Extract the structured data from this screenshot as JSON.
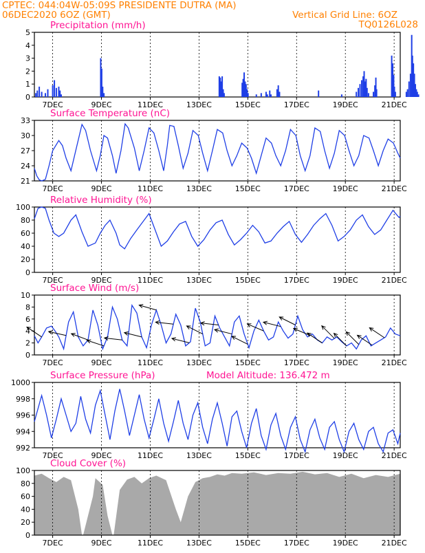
{
  "header": {
    "line1": "CPTEC:   044:04W-05:09S   PRESIDENTE DUTRA (MA)",
    "line2": "06DEC2020 6OZ (GMT)",
    "right1": "Vertical Grid Line: 6OZ",
    "right2": "TQ0126L028"
  },
  "colors": {
    "line": "#1f3fe6",
    "header": "#ff8000",
    "title": "#ff1493",
    "cloud": "#a9a9a9",
    "arrow": "#000000"
  },
  "chart_data": [
    {
      "type": "bar",
      "title": "Precipitation (mm/h)",
      "x_labels": [
        "7DEC",
        "9DEC",
        "11DEC",
        "13DEC",
        "15DEC",
        "17DEC",
        "19DEC",
        "21DEC"
      ],
      "ylim": [
        0,
        5
      ],
      "yticks": [
        0,
        1,
        2,
        3,
        4,
        5
      ],
      "x_unit": "day offset from 06DEC2020 06Z (hourly bars)",
      "bars": [
        [
          0.06,
          0.3
        ],
        [
          0.12,
          0.5
        ],
        [
          0.2,
          0.8
        ],
        [
          0.3,
          0.4
        ],
        [
          0.45,
          0.3
        ],
        [
          0.55,
          0.6
        ],
        [
          0.75,
          0.9
        ],
        [
          0.82,
          1.3
        ],
        [
          0.9,
          0.7
        ],
        [
          1.0,
          0.8
        ],
        [
          1.05,
          0.5
        ],
        [
          1.1,
          0.2
        ],
        [
          2.72,
          3.0
        ],
        [
          2.76,
          2.2
        ],
        [
          2.8,
          0.8
        ],
        [
          2.85,
          0.3
        ],
        [
          7.58,
          1.6
        ],
        [
          7.62,
          1.5
        ],
        [
          7.66,
          1.2
        ],
        [
          7.7,
          1.6
        ],
        [
          7.74,
          0.6
        ],
        [
          7.78,
          0.3
        ],
        [
          8.52,
          1.1
        ],
        [
          8.56,
          1.4
        ],
        [
          8.6,
          1.9
        ],
        [
          8.64,
          1.2
        ],
        [
          8.68,
          1.0
        ],
        [
          8.72,
          0.6
        ],
        [
          8.76,
          0.3
        ],
        [
          9.1,
          0.2
        ],
        [
          9.3,
          0.3
        ],
        [
          9.5,
          0.4
        ],
        [
          9.55,
          0.2
        ],
        [
          9.65,
          0.5
        ],
        [
          9.7,
          0.2
        ],
        [
          9.95,
          0.6
        ],
        [
          10.0,
          0.9
        ],
        [
          10.05,
          0.4
        ],
        [
          11.65,
          0.5
        ],
        [
          12.6,
          0.2
        ],
        [
          13.2,
          0.4
        ],
        [
          13.28,
          0.7
        ],
        [
          13.35,
          1.0
        ],
        [
          13.42,
          1.3
        ],
        [
          13.48,
          1.6
        ],
        [
          13.52,
          2.0
        ],
        [
          13.56,
          1.2
        ],
        [
          13.6,
          1.4
        ],
        [
          13.64,
          0.7
        ],
        [
          13.7,
          0.3
        ],
        [
          13.9,
          0.4
        ],
        [
          13.96,
          0.9
        ],
        [
          14.0,
          1.5
        ],
        [
          14.03,
          0.6
        ],
        [
          14.65,
          3.2
        ],
        [
          14.69,
          2.6
        ],
        [
          14.73,
          1.7
        ],
        [
          14.76,
          0.8
        ],
        [
          14.8,
          0.4
        ],
        [
          15.25,
          0.4
        ],
        [
          15.3,
          0.6
        ],
        [
          15.36,
          1.2
        ],
        [
          15.42,
          1.8
        ],
        [
          15.47,
          4.8
        ],
        [
          15.5,
          3.2
        ],
        [
          15.54,
          2.6
        ],
        [
          15.58,
          1.8
        ],
        [
          15.62,
          1.0
        ],
        [
          15.66,
          0.6
        ],
        [
          15.7,
          0.4
        ],
        [
          15.75,
          0.2
        ]
      ]
    },
    {
      "type": "line",
      "title": "Surface Temperature (nC)",
      "x_labels": [
        "7DEC",
        "9DEC",
        "11DEC",
        "13DEC",
        "15DEC",
        "17DEC",
        "19DEC",
        "21DEC"
      ],
      "ylim": [
        21,
        33
      ],
      "yticks": [
        21,
        24,
        27,
        30,
        33
      ],
      "x": [
        0,
        0.1,
        0.2,
        0.3,
        0.45,
        0.6,
        0.75,
        1.0,
        1.15,
        1.3,
        1.5,
        1.72,
        1.95,
        2.1,
        2.3,
        2.55,
        2.7,
        2.85,
        3.0,
        3.2,
        3.35,
        3.55,
        3.72,
        3.85,
        4.1,
        4.3,
        4.5,
        4.7,
        4.9,
        5.1,
        5.3,
        5.45,
        5.55,
        5.72,
        5.9,
        6.1,
        6.3,
        6.5,
        6.72,
        6.9,
        7.1,
        7.3,
        7.5,
        7.72,
        7.9,
        8.1,
        8.3,
        8.5,
        8.72,
        8.9,
        9.1,
        9.3,
        9.5,
        9.72,
        9.9,
        10.1,
        10.3,
        10.5,
        10.72,
        10.9,
        11.1,
        11.3,
        11.5,
        11.72,
        11.9,
        12.1,
        12.3,
        12.5,
        12.72,
        12.9,
        13.1,
        13.3,
        13.5,
        13.72,
        13.9,
        14.1,
        14.3,
        14.5,
        14.72,
        14.9,
        15.0
      ],
      "y": [
        23.5,
        22.0,
        21.2,
        21.0,
        21.3,
        24.0,
        27.0,
        29.0,
        28.0,
        25.5,
        23.0,
        27.5,
        32.2,
        31.0,
        27.0,
        23.0,
        26.0,
        30.0,
        29.5,
        26.0,
        22.5,
        27.0,
        32.3,
        31.5,
        27.5,
        23.0,
        27.0,
        31.5,
        30.5,
        27.0,
        23.0,
        28.0,
        32.0,
        31.8,
        28.0,
        23.5,
        26.5,
        31.0,
        30.0,
        26.5,
        23.0,
        27.0,
        31.2,
        30.5,
        27.0,
        24.0,
        26.0,
        28.5,
        27.5,
        25.5,
        22.5,
        26.0,
        29.5,
        28.5,
        26.0,
        24.0,
        27.0,
        31.2,
        30.0,
        26.0,
        23.0,
        26.0,
        31.5,
        30.8,
        27.0,
        23.5,
        26.5,
        31.0,
        30.0,
        27.0,
        24.0,
        26.0,
        30.0,
        29.5,
        27.0,
        24.0,
        27.0,
        29.3,
        28.5,
        26.5,
        25.5
      ]
    },
    {
      "type": "line",
      "title": "Relative Humidity (%)",
      "x_labels": [
        "7DEC",
        "9DEC",
        "11DEC",
        "13DEC",
        "15DEC",
        "17DEC",
        "19DEC",
        "21DEC"
      ],
      "ylim": [
        0,
        100
      ],
      "yticks": [
        0,
        20,
        40,
        60,
        80,
        100
      ],
      "x": [
        0,
        0.15,
        0.3,
        0.45,
        0.6,
        0.8,
        1.0,
        1.2,
        1.5,
        1.7,
        1.95,
        2.2,
        2.5,
        2.7,
        2.9,
        3.1,
        3.35,
        3.5,
        3.7,
        3.95,
        4.2,
        4.5,
        4.7,
        4.9,
        5.2,
        5.45,
        5.7,
        5.95,
        6.2,
        6.45,
        6.7,
        6.95,
        7.2,
        7.45,
        7.7,
        7.95,
        8.2,
        8.45,
        8.7,
        8.95,
        9.2,
        9.45,
        9.7,
        9.95,
        10.2,
        10.45,
        10.7,
        10.95,
        11.2,
        11.45,
        11.7,
        11.95,
        12.2,
        12.45,
        12.7,
        12.95,
        13.2,
        13.45,
        13.7,
        13.95,
        14.2,
        14.45,
        14.7,
        14.95,
        15.0
      ],
      "y": [
        82,
        98,
        100,
        98,
        80,
        60,
        55,
        60,
        80,
        88,
        62,
        40,
        45,
        60,
        72,
        80,
        60,
        42,
        36,
        52,
        65,
        80,
        90,
        70,
        40,
        48,
        62,
        74,
        78,
        55,
        40,
        50,
        65,
        76,
        80,
        58,
        42,
        50,
        60,
        72,
        62,
        45,
        48,
        60,
        70,
        78,
        58,
        46,
        58,
        72,
        82,
        90,
        72,
        48,
        55,
        65,
        80,
        88,
        70,
        58,
        65,
        80,
        95,
        84,
        86
      ]
    },
    {
      "type": "line",
      "title": "Surface Wind (m/s)",
      "x_labels": [
        "7DEC",
        "9DEC",
        "11DEC",
        "13DEC",
        "15DEC",
        "17DEC",
        "19DEC",
        "21DEC"
      ],
      "ylim": [
        0,
        10
      ],
      "yticks": [
        0,
        2,
        4,
        6,
        8,
        10
      ],
      "x": [
        0,
        0.15,
        0.3,
        0.5,
        0.7,
        0.85,
        1.0,
        1.2,
        1.4,
        1.6,
        1.8,
        2.0,
        2.2,
        2.4,
        2.6,
        2.8,
        3.0,
        3.2,
        3.4,
        3.6,
        3.8,
        4.0,
        4.2,
        4.4,
        4.6,
        4.8,
        5.0,
        5.2,
        5.4,
        5.6,
        5.8,
        6.0,
        6.2,
        6.4,
        6.6,
        6.8,
        7.0,
        7.2,
        7.4,
        7.6,
        7.8,
        8.0,
        8.2,
        8.4,
        8.6,
        8.8,
        9.0,
        9.2,
        9.4,
        9.6,
        9.8,
        10.0,
        10.2,
        10.4,
        10.6,
        10.8,
        11.0,
        11.2,
        11.4,
        11.6,
        11.8,
        12.0,
        12.2,
        12.4,
        12.6,
        12.8,
        13.0,
        13.2,
        13.4,
        13.6,
        13.8,
        14.0,
        14.2,
        14.4,
        14.6,
        14.8,
        15.0
      ],
      "y": [
        3.2,
        2.0,
        3.0,
        4.5,
        4.8,
        4.0,
        3.0,
        1.0,
        5.5,
        7.2,
        3.0,
        1.5,
        2.5,
        7.5,
        5.0,
        1.0,
        3.0,
        8.0,
        6.0,
        2.5,
        1.5,
        8.3,
        7.0,
        3.0,
        1.2,
        5.0,
        7.5,
        5.0,
        2.0,
        3.5,
        6.8,
        5.0,
        1.5,
        2.2,
        7.8,
        5.5,
        1.5,
        2.0,
        6.5,
        4.5,
        3.0,
        1.5,
        5.5,
        6.5,
        3.5,
        1.2,
        4.0,
        5.8,
        4.0,
        2.5,
        3.0,
        5.5,
        4.0,
        2.8,
        3.5,
        6.5,
        4.2,
        3.0,
        3.5,
        2.5,
        2.0,
        3.0,
        2.5,
        3.0,
        2.2,
        1.5,
        2.0,
        1.0,
        2.5,
        3.2,
        1.5,
        2.0,
        2.5,
        3.0,
        4.5,
        3.5,
        3.2
      ],
      "arrows_x": [
        0.3,
        1.3,
        2.2,
        2.85,
        3.6,
        4.4,
        5.0,
        5.7,
        6.35,
        6.9,
        7.55,
        8.1,
        8.75,
        9.4,
        10.1,
        10.7,
        11.3,
        11.8,
        12.3,
        12.8,
        13.3,
        13.85,
        14.35
      ],
      "arrows_u": [
        -0.6,
        -0.9,
        -0.8,
        -0.6,
        -0.9,
        -0.8,
        -0.7,
        -0.9,
        -0.8,
        -0.6,
        -0.9,
        -0.8,
        -0.6,
        -0.7,
        -0.8,
        -0.6,
        -0.7,
        -0.6,
        -0.5,
        -0.5,
        -0.5,
        -0.6,
        -0.6
      ],
      "arrows_v": [
        0.4,
        0.2,
        0.3,
        0.2,
        0.1,
        0.2,
        0.2,
        0.1,
        0.2,
        0.3,
        0.1,
        0.2,
        0.3,
        0.3,
        0.2,
        0.3,
        0.3,
        0.4,
        0.5,
        0.5,
        0.5,
        0.4,
        0.4
      ]
    },
    {
      "type": "line",
      "title": "Surface Pressure (hPa)",
      "annotation": "Model Altitude: 136.472  m",
      "x_labels": [
        "7DEC",
        "9DEC",
        "11DEC",
        "13DEC",
        "15DEC",
        "17DEC",
        "19DEC",
        "21DEC"
      ],
      "ylim": [
        992,
        1000
      ],
      "yticks": [
        992,
        994,
        996,
        998,
        1000
      ],
      "x": [
        0,
        0.12,
        0.3,
        0.5,
        0.7,
        0.9,
        1.1,
        1.3,
        1.5,
        1.7,
        1.9,
        2.1,
        2.3,
        2.5,
        2.7,
        2.9,
        3.1,
        3.3,
        3.5,
        3.7,
        3.9,
        4.1,
        4.3,
        4.5,
        4.7,
        4.9,
        5.1,
        5.3,
        5.5,
        5.7,
        5.9,
        6.1,
        6.3,
        6.5,
        6.7,
        6.9,
        7.1,
        7.3,
        7.5,
        7.7,
        7.9,
        8.1,
        8.3,
        8.5,
        8.7,
        8.9,
        9.1,
        9.3,
        9.5,
        9.7,
        9.9,
        10.1,
        10.3,
        10.5,
        10.7,
        10.9,
        11.1,
        11.3,
        11.5,
        11.7,
        11.9,
        12.1,
        12.3,
        12.5,
        12.7,
        12.9,
        13.1,
        13.3,
        13.5,
        13.7,
        13.9,
        14.1,
        14.3,
        14.5,
        14.7,
        14.9,
        15.0
      ],
      "y": [
        995.2,
        996.5,
        998.4,
        996.0,
        993.2,
        995.5,
        998.0,
        996.0,
        994.0,
        995.0,
        998.3,
        995.5,
        993.8,
        997.2,
        999.0,
        996.0,
        993.0,
        996.5,
        999.2,
        996.5,
        993.5,
        996.0,
        998.5,
        995.5,
        993.2,
        995.5,
        998.0,
        995.0,
        992.8,
        995.2,
        997.8,
        995.0,
        993.0,
        996.0,
        997.5,
        994.5,
        992.5,
        995.5,
        997.5,
        995.0,
        992.2,
        995.8,
        996.5,
        994.0,
        992.0,
        995.0,
        996.8,
        993.5,
        991.8,
        994.8,
        996.2,
        993.5,
        991.8,
        994.5,
        995.8,
        993.0,
        991.5,
        994.2,
        995.5,
        993.2,
        991.8,
        994.5,
        995.2,
        993.0,
        991.5,
        994.0,
        995.0,
        993.0,
        991.8,
        994.0,
        994.5,
        992.5,
        991.5,
        993.8,
        994.2,
        992.5,
        993.8
      ]
    },
    {
      "type": "area",
      "title": "Cloud Cover (%)",
      "x_labels": [
        "7DEC",
        "9DEC",
        "11DEC",
        "13DEC",
        "15DEC",
        "17DEC",
        "19DEC",
        "21DEC"
      ],
      "ylim": [
        0,
        100
      ],
      "yticks": [
        0,
        20,
        40,
        60,
        80,
        100
      ],
      "x": [
        0,
        0.3,
        0.6,
        0.9,
        1.2,
        1.5,
        1.8,
        1.95,
        2.0,
        2.4,
        2.5,
        2.8,
        3.0,
        3.2,
        3.25,
        3.5,
        3.8,
        4.1,
        4.4,
        4.7,
        5.0,
        5.4,
        5.8,
        6.0,
        6.3,
        6.6,
        6.9,
        7.2,
        7.5,
        7.8,
        8.1,
        8.5,
        9.0,
        9.5,
        10.0,
        10.5,
        11.0,
        11.5,
        12.0,
        12.5,
        13.0,
        13.5,
        14.0,
        14.5,
        15.0
      ],
      "y": [
        92,
        95,
        88,
        82,
        90,
        85,
        40,
        0,
        0,
        60,
        88,
        78,
        30,
        0,
        0,
        70,
        86,
        90,
        80,
        88,
        92,
        85,
        40,
        20,
        60,
        82,
        88,
        90,
        94,
        92,
        96,
        95,
        97,
        93,
        96,
        95,
        98,
        94,
        96,
        90,
        95,
        88,
        93,
        90,
        95
      ]
    }
  ]
}
